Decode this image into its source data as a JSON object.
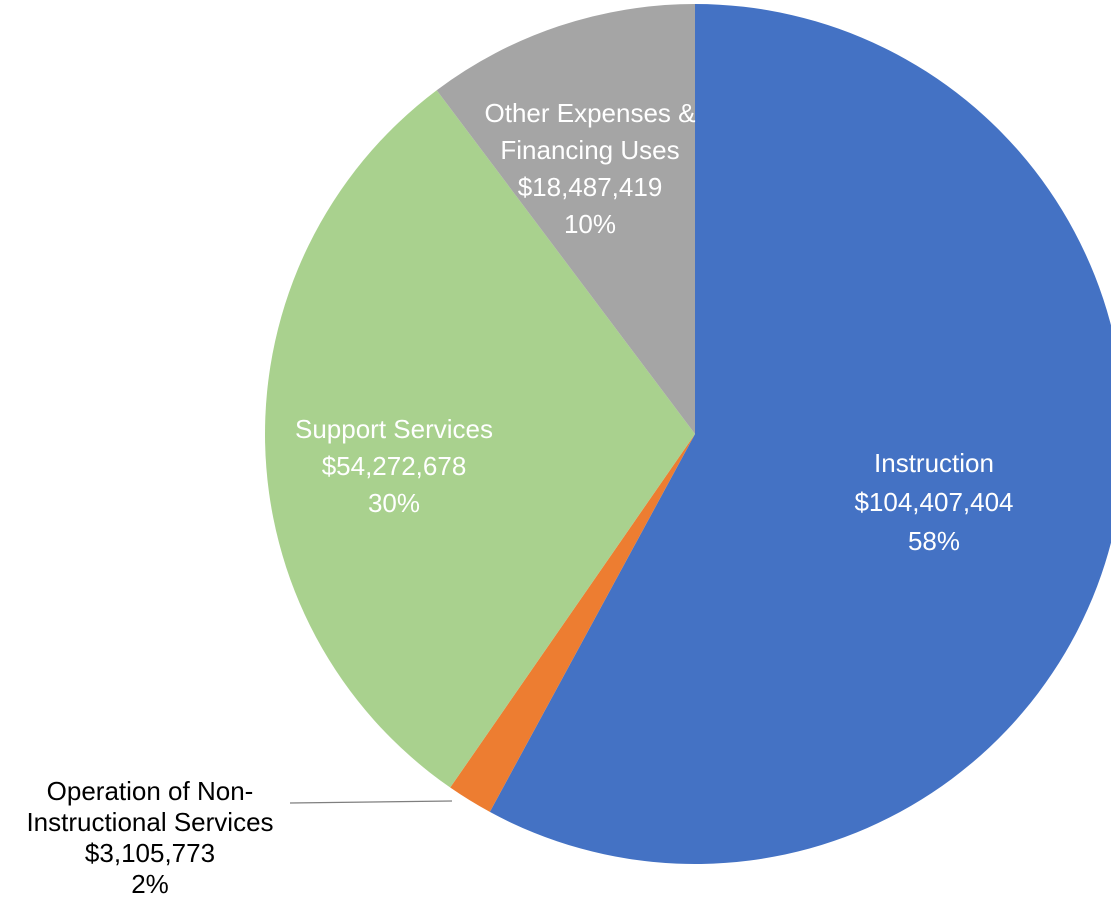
{
  "chart_data": {
    "type": "pie",
    "title": "",
    "slices": [
      {
        "line1": "Instruction",
        "line2": "",
        "value": 104407404,
        "value_label": "$104,407,404",
        "percent_label": "58%",
        "color": "#4472C4",
        "label_color": "#FFFFFF"
      },
      {
        "line1": "Operation of Non-",
        "line2": "Instructional Services",
        "value": 3105773,
        "value_label": "$3,105,773",
        "percent_label": "2%",
        "color": "#ED7D31",
        "label_color": "#000000"
      },
      {
        "line1": "Support Services",
        "line2": "",
        "value": 54272678,
        "value_label": "$54,272,678",
        "percent_label": "30%",
        "color": "#A9D18E",
        "label_color": "#FFFFFF"
      },
      {
        "line1": "Other Expenses &",
        "line2": "Financing Uses",
        "value": 18487419,
        "value_label": "$18,487,419",
        "percent_label": "10%",
        "color": "#A5A5A5",
        "label_color": "#FFFFFF"
      }
    ],
    "start_angle": "12 o'clock",
    "direction": "clockwise",
    "legend": "none"
  }
}
